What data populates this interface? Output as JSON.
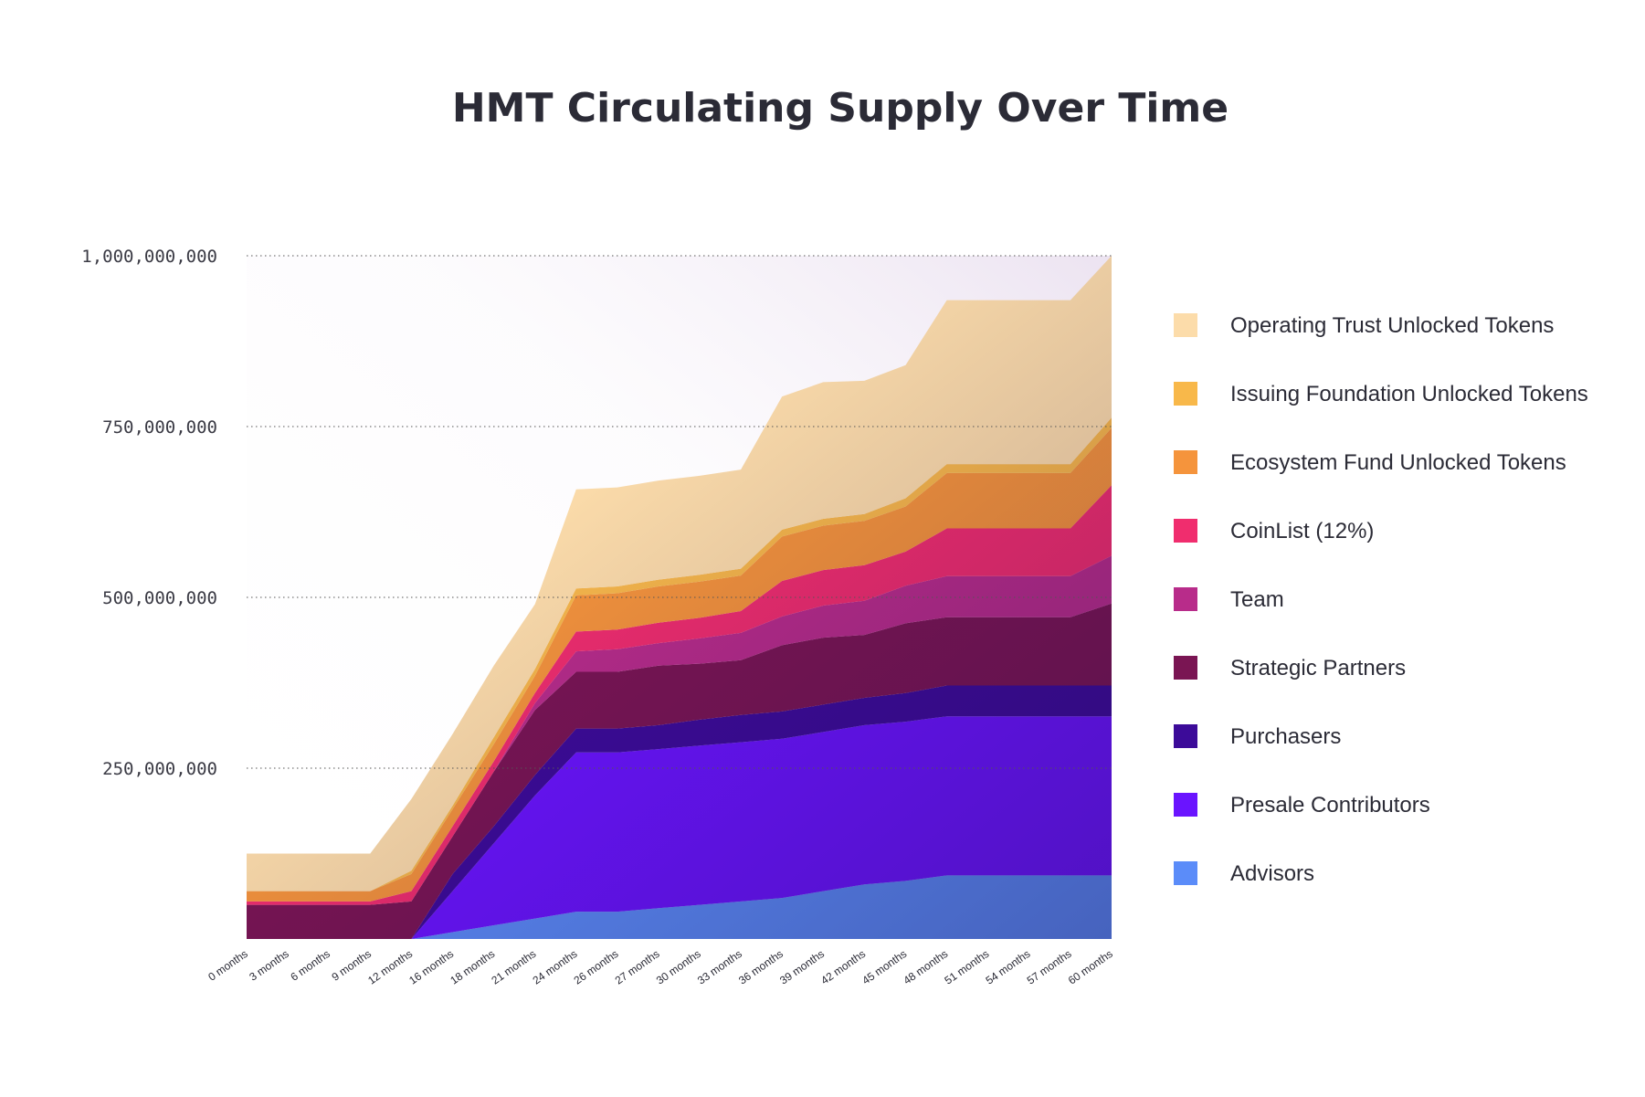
{
  "chart_data": {
    "type": "area",
    "stacked": true,
    "title": "HMT Circulating Supply Over Time",
    "xlabel": "",
    "ylabel": "",
    "ylim": [
      0,
      1000000000
    ],
    "y_ticks": [
      "250,000,000",
      "500,000,000",
      "750,000,000",
      "1,000,000,000"
    ],
    "y_tick_values": [
      250000000,
      500000000,
      750000000,
      1000000000
    ],
    "grid": "horizontal dotted",
    "legend_position": "right",
    "categories": [
      "0 months",
      "3 months",
      "6 months",
      "9 months",
      "12 months",
      "16 months",
      "18 months",
      "21 months",
      "24 months",
      "26 months",
      "27 months",
      "30 months",
      "33 months",
      "36 months",
      "39 months",
      "42 months",
      "45 months",
      "48 months",
      "51 months",
      "54 months",
      "57 months",
      "60 months"
    ],
    "series": [
      {
        "name": "Advisors",
        "color": "#5b8cf9",
        "values": [
          0,
          0,
          0,
          0,
          0,
          10000000,
          20000000,
          30000000,
          40000000,
          40000000,
          45000000,
          50000000,
          55000000,
          60000000,
          70000000,
          80000000,
          85000000,
          93000000,
          93000000,
          93000000,
          93000000,
          93000000
        ]
      },
      {
        "name": "Presale Contributors",
        "color": "#6a14ff",
        "values": [
          0,
          0,
          0,
          0,
          0,
          60000000,
          120000000,
          180000000,
          233000000,
          233000000,
          233000000,
          233000000,
          233000000,
          233000000,
          233000000,
          233000000,
          233000000,
          233000000,
          233000000,
          233000000,
          233000000,
          233000000
        ]
      },
      {
        "name": "Purchasers",
        "color": "#3c0b99",
        "values": [
          0,
          0,
          0,
          0,
          0,
          25000000,
          25000000,
          30000000,
          35000000,
          35000000,
          35000000,
          38000000,
          40000000,
          40000000,
          40000000,
          40000000,
          42000000,
          45000000,
          45000000,
          45000000,
          45000000,
          45000000
        ]
      },
      {
        "name": "Strategic Partners",
        "color": "#7a1553",
        "values": [
          50000000,
          50000000,
          50000000,
          50000000,
          55000000,
          55000000,
          80000000,
          95000000,
          83000000,
          83000000,
          87000000,
          82000000,
          80000000,
          97000000,
          98000000,
          92000000,
          102000000,
          100000000,
          100000000,
          100000000,
          100000000,
          120000000
        ]
      },
      {
        "name": "Team",
        "color": "#b82c8a",
        "values": [
          0,
          0,
          0,
          0,
          0,
          0,
          0,
          10000000,
          30000000,
          33000000,
          33000000,
          37000000,
          40000000,
          42000000,
          47000000,
          50000000,
          55000000,
          60000000,
          60000000,
          60000000,
          60000000,
          70000000
        ]
      },
      {
        "name": "CoinList (12%)",
        "color": "#f02d6e",
        "values": [
          5000000,
          5000000,
          5000000,
          5000000,
          15000000,
          15000000,
          15000000,
          15000000,
          29000000,
          29000000,
          30000000,
          30000000,
          32000000,
          52000000,
          52000000,
          52000000,
          50000000,
          70000000,
          70000000,
          70000000,
          70000000,
          103000000
        ]
      },
      {
        "name": "Ecosystem Fund Unlocked Tokens",
        "color": "#f5943c",
        "values": [
          15000000,
          15000000,
          15000000,
          15000000,
          25000000,
          25000000,
          25000000,
          25000000,
          53000000,
          53000000,
          53000000,
          53000000,
          52000000,
          65000000,
          65000000,
          65000000,
          66000000,
          81000000,
          81000000,
          81000000,
          81000000,
          84000000
        ]
      },
      {
        "name": "Issuing Foundation Unlocked Tokens",
        "color": "#f8b84a",
        "values": [
          0,
          0,
          0,
          0,
          5000000,
          5000000,
          10000000,
          10000000,
          10000000,
          10000000,
          10000000,
          10000000,
          10000000,
          10000000,
          10000000,
          10000000,
          12000000,
          13000000,
          13000000,
          13000000,
          13000000,
          15000000
        ]
      },
      {
        "name": "Operating Trust Unlocked Tokens",
        "color": "#fcdcaa",
        "values": [
          55000000,
          55000000,
          55000000,
          55000000,
          105000000,
          105000000,
          105000000,
          95000000,
          145000000,
          145000000,
          145000000,
          145000000,
          145000000,
          195000000,
          200000000,
          195000000,
          195000000,
          240000000,
          240000000,
          240000000,
          240000000,
          237000000
        ]
      }
    ]
  }
}
